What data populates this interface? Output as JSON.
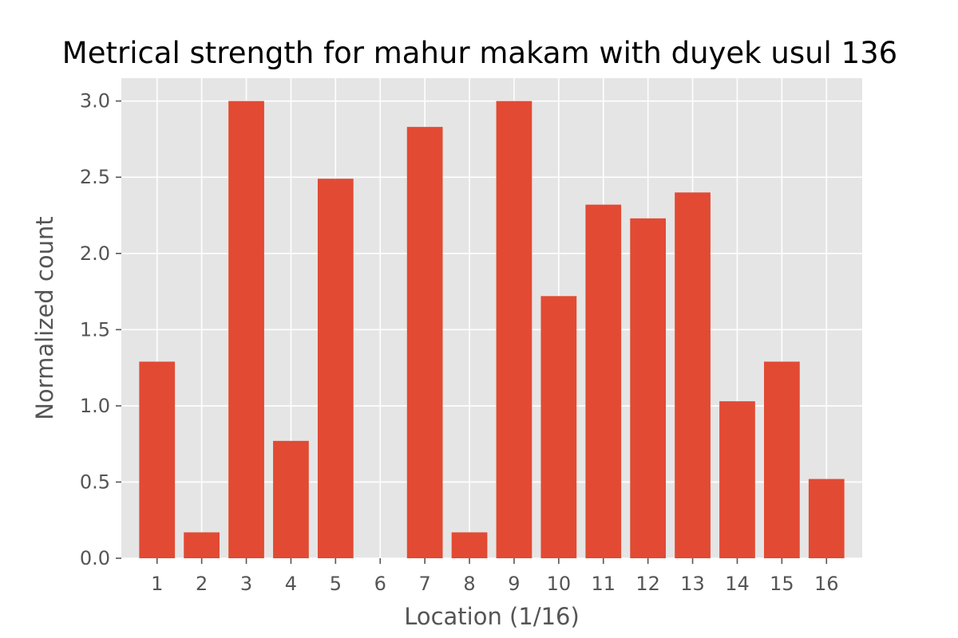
{
  "chart_data": {
    "type": "bar",
    "title": "Metrical strength for mahur makam with duyek usul 136",
    "xlabel": "Location (1/16)",
    "ylabel": "Normalized count",
    "categories": [
      "1",
      "2",
      "3",
      "4",
      "5",
      "6",
      "7",
      "8",
      "9",
      "10",
      "11",
      "12",
      "13",
      "14",
      "15",
      "16"
    ],
    "values": [
      1.29,
      0.17,
      3.0,
      0.77,
      2.49,
      0.0,
      2.83,
      0.17,
      3.0,
      1.72,
      2.32,
      2.23,
      2.4,
      1.03,
      1.29,
      0.52
    ],
    "ylim": [
      0,
      3.15
    ],
    "yticks": [
      "0.0",
      "0.5",
      "1.0",
      "1.5",
      "2.0",
      "2.5",
      "3.0"
    ],
    "ytick_values": [
      0,
      0.5,
      1.0,
      1.5,
      2.0,
      2.5,
      3.0
    ],
    "grid": true,
    "colors": {
      "bar": "#E24A33",
      "plot_bg": "#E5E5E5",
      "grid": "#FFFFFF",
      "text": "#555555"
    }
  }
}
